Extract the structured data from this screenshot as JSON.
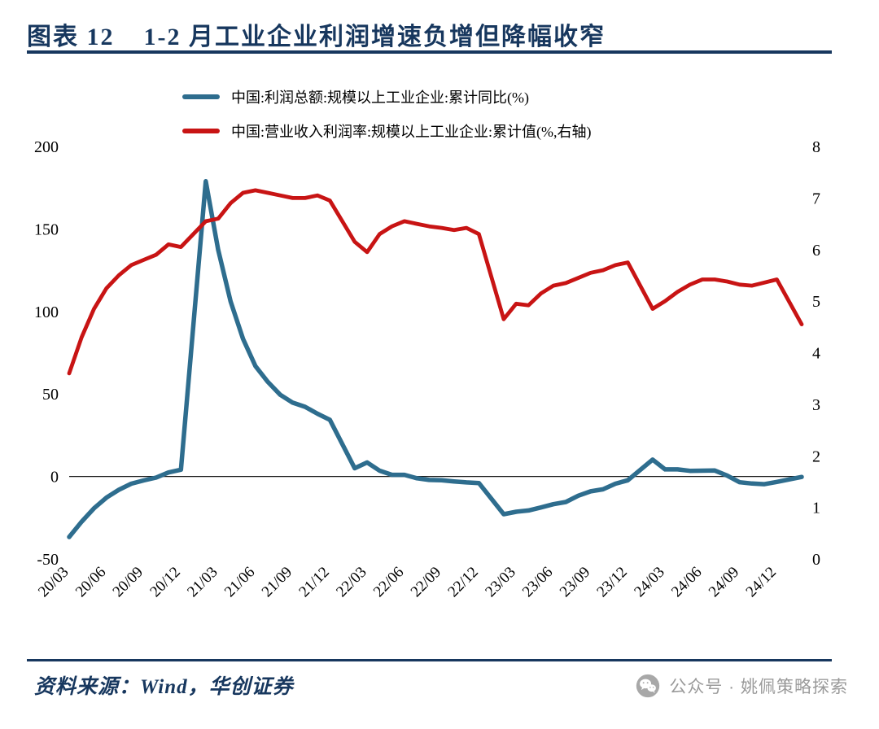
{
  "header": {
    "chart_label": "图表 12",
    "title": "1-2 月工业企业利润增速负增但降幅收窄"
  },
  "footer": {
    "source": "资料来源：Wind，华创证券"
  },
  "watermark": {
    "text": "公众号 · 姚佩策略探索",
    "icon": "wechat-icon"
  },
  "colors": {
    "accent_navy": "#17375e",
    "series_blue": "#2e6d8e",
    "series_red": "#c81414",
    "watermark_gray": "#9a9a9a"
  },
  "chart_data": {
    "type": "line",
    "title": "1-2 月工业企业利润增速负增但降幅收窄",
    "grid": false,
    "legend_position": "top-left",
    "x_tick_labels": [
      "20/03",
      "20/06",
      "20/09",
      "20/12",
      "21/03",
      "21/06",
      "21/09",
      "21/12",
      "22/03",
      "22/06",
      "22/09",
      "22/12",
      "23/03",
      "23/06",
      "23/09",
      "23/12",
      "24/03",
      "24/06",
      "24/09",
      "24/12"
    ],
    "left_axis": {
      "ticks": [
        200,
        150,
        100,
        50,
        0,
        -50
      ],
      "range": [
        -50,
        200
      ],
      "unit": "%"
    },
    "right_axis": {
      "ticks": [
        8,
        7,
        6,
        5,
        4,
        3,
        2,
        1,
        0
      ],
      "range": [
        0,
        8
      ],
      "unit": "%"
    },
    "months": [
      "20/03",
      "20/04",
      "20/05",
      "20/06",
      "20/07",
      "20/08",
      "20/09",
      "20/10",
      "20/11",
      "20/12",
      "21/02",
      "21/03",
      "21/04",
      "21/05",
      "21/06",
      "21/07",
      "21/08",
      "21/09",
      "21/10",
      "21/11",
      "21/12",
      "22/02",
      "22/03",
      "22/04",
      "22/05",
      "22/06",
      "22/07",
      "22/08",
      "22/09",
      "22/10",
      "22/11",
      "22/12",
      "23/02",
      "23/03",
      "23/04",
      "23/05",
      "23/06",
      "23/07",
      "23/08",
      "23/09",
      "23/10",
      "23/11",
      "23/12",
      "24/02",
      "24/03",
      "24/04",
      "24/05",
      "24/06",
      "24/07",
      "24/08",
      "24/09",
      "24/10",
      "24/11",
      "24/12",
      "25/02"
    ],
    "series": [
      {
        "name": "中国:利润总额:规模以上工业企业:累计同比(%)",
        "axis": "left",
        "color": "#2e6d8e",
        "width": 5.5,
        "values": [
          -36.7,
          -27.4,
          -19.3,
          -12.8,
          -8.1,
          -4.4,
          -2.4,
          -0.7,
          2.4,
          4.1,
          178.9,
          137.3,
          106.1,
          83.4,
          66.9,
          57.3,
          49.5,
          44.7,
          42.2,
          38.0,
          34.3,
          5.0,
          8.5,
          3.5,
          1.0,
          1.0,
          -1.1,
          -2.1,
          -2.3,
          -3.0,
          -3.6,
          -4.0,
          -22.9,
          -21.4,
          -20.6,
          -18.8,
          -16.8,
          -15.5,
          -11.7,
          -9.0,
          -7.8,
          -4.4,
          -2.3,
          10.2,
          4.3,
          4.3,
          3.4,
          3.5,
          3.6,
          0.5,
          -3.5,
          -4.3,
          -4.7,
          -3.3,
          -0.3
        ]
      },
      {
        "name": "中国:营业收入利润率:规模以上工业企业:累计值(%,右轴)",
        "axis": "right",
        "color": "#c81414",
        "width": 4.8,
        "values": [
          3.6,
          4.3,
          4.85,
          5.25,
          5.5,
          5.7,
          5.8,
          5.9,
          6.1,
          6.05,
          6.55,
          6.6,
          6.9,
          7.1,
          7.15,
          7.1,
          7.05,
          7.0,
          7.0,
          7.05,
          6.95,
          6.15,
          5.95,
          6.3,
          6.45,
          6.55,
          6.5,
          6.45,
          6.42,
          6.38,
          6.42,
          6.3,
          4.65,
          4.95,
          4.92,
          5.15,
          5.3,
          5.35,
          5.45,
          5.55,
          5.6,
          5.7,
          5.75,
          4.85,
          5.0,
          5.18,
          5.32,
          5.42,
          5.42,
          5.38,
          5.32,
          5.3,
          5.36,
          5.42,
          4.55
        ]
      }
    ]
  }
}
